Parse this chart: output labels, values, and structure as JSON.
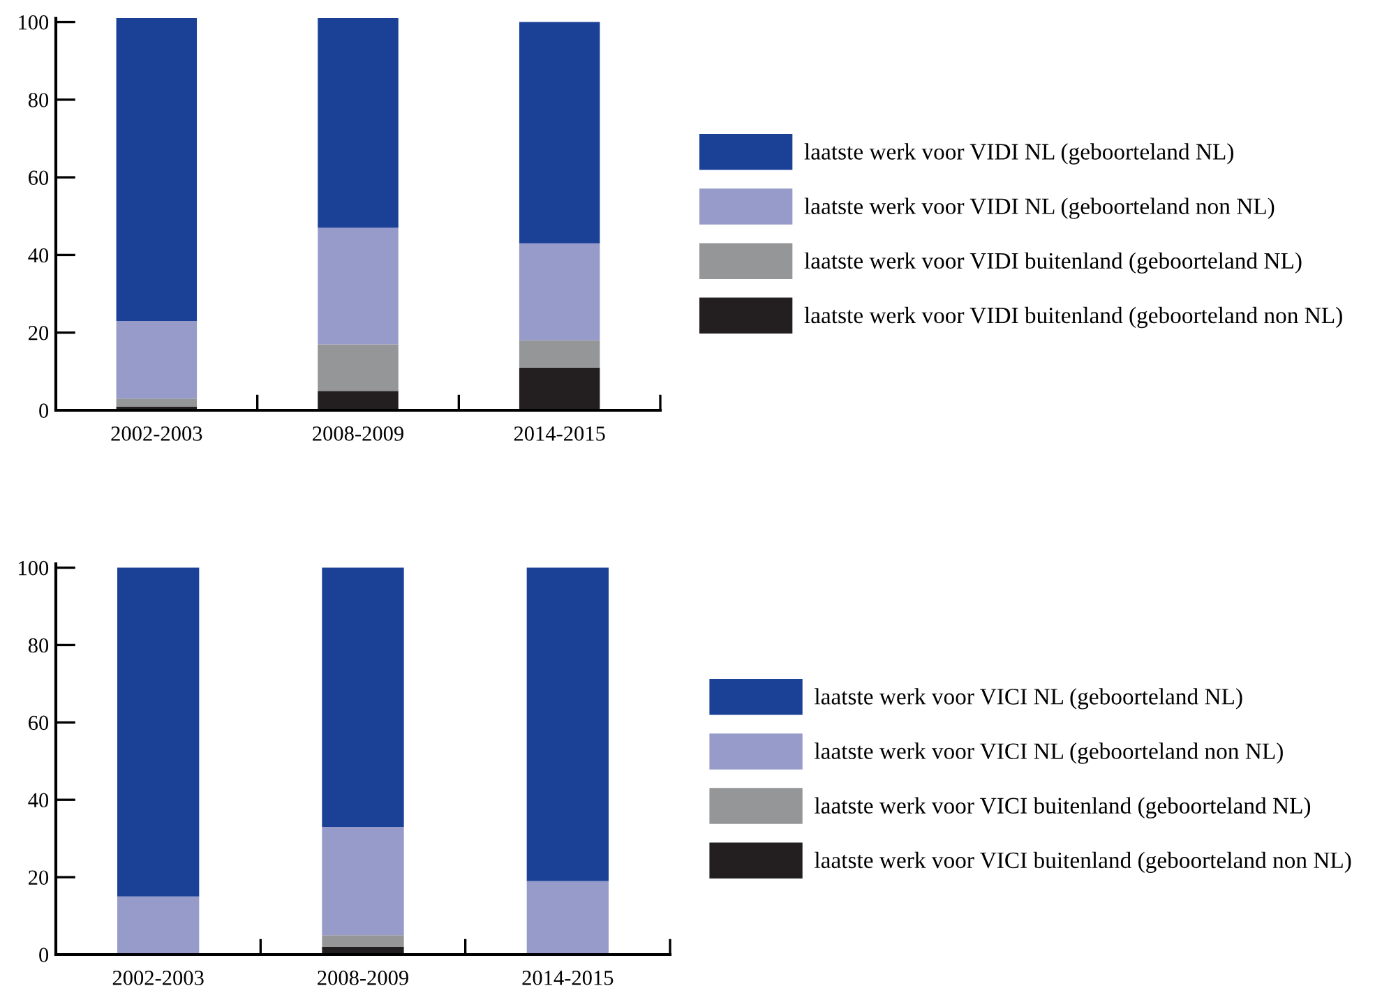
{
  "chart_data": [
    {
      "type": "bar",
      "stacked": true,
      "categories": [
        "2002-2003",
        "2008-2009",
        "2014-2015"
      ],
      "ylim": [
        0,
        101
      ],
      "yticks": [
        0,
        20,
        40,
        60,
        80,
        100
      ],
      "legend": "right",
      "grid": false,
      "series": [
        {
          "name": "laatste werk voor VIDI buitenland (geboorteland non NL)",
          "color": "#231f20",
          "values": [
            1,
            5,
            11
          ]
        },
        {
          "name": "laatste werk voor VIDI buitenland (geboorteland NL)",
          "color": "#959698",
          "values": [
            2,
            12,
            7
          ]
        },
        {
          "name": "laatste werk voor VIDI NL (geboorteland non NL)",
          "color": "#979bc9",
          "values": [
            20,
            30,
            25
          ]
        },
        {
          "name": "laatste werk voor VIDI NL (geboorteland NL)",
          "color": "#1b4197",
          "values": [
            78,
            54,
            57
          ]
        }
      ]
    },
    {
      "type": "bar",
      "stacked": true,
      "categories": [
        "2002-2003",
        "2008-2009",
        "2014-2015"
      ],
      "ylim": [
        0,
        101
      ],
      "yticks": [
        0,
        20,
        40,
        60,
        80,
        100
      ],
      "legend": "right",
      "grid": false,
      "series": [
        {
          "name": "laatste werk voor VICI buitenland (geboorteland non NL)",
          "color": "#231f20",
          "values": [
            0,
            2,
            0
          ]
        },
        {
          "name": "laatste werk voor VICI buitenland (geboorteland NL)",
          "color": "#959698",
          "values": [
            0,
            3,
            0
          ]
        },
        {
          "name": "laatste werk voor VICI NL (geboorteland non NL)",
          "color": "#979bc9",
          "values": [
            15,
            28,
            19
          ]
        },
        {
          "name": "laatste werk voor VICI NL (geboorteland NL)",
          "color": "#1b4197",
          "values": [
            85,
            67,
            81
          ]
        }
      ]
    }
  ]
}
